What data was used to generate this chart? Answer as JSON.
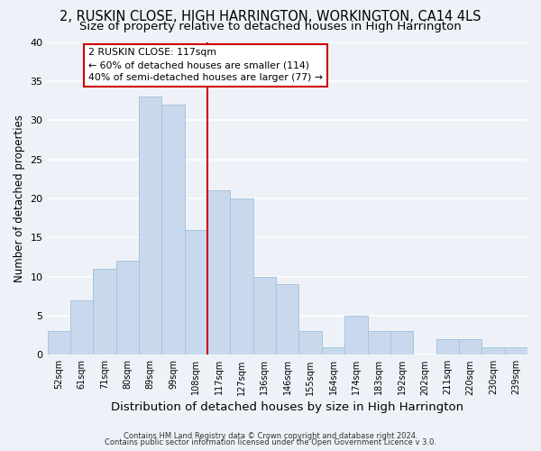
{
  "title1": "2, RUSKIN CLOSE, HIGH HARRINGTON, WORKINGTON, CA14 4LS",
  "title2": "Size of property relative to detached houses in High Harrington",
  "xlabel": "Distribution of detached houses by size in High Harrington",
  "ylabel": "Number of detached properties",
  "footer1": "Contains HM Land Registry data © Crown copyright and database right 2024.",
  "footer2": "Contains public sector information licensed under the Open Government Licence v 3.0.",
  "bin_labels": [
    "52sqm",
    "61sqm",
    "71sqm",
    "80sqm",
    "89sqm",
    "99sqm",
    "108sqm",
    "117sqm",
    "127sqm",
    "136sqm",
    "146sqm",
    "155sqm",
    "164sqm",
    "174sqm",
    "183sqm",
    "192sqm",
    "202sqm",
    "211sqm",
    "220sqm",
    "230sqm",
    "239sqm"
  ],
  "bar_values": [
    3,
    7,
    11,
    12,
    33,
    32,
    16,
    21,
    20,
    10,
    9,
    3,
    1,
    5,
    3,
    3,
    0,
    2,
    2,
    1,
    1
  ],
  "bar_color": "#c8d9ed",
  "bar_edge_color": "#a8c4dc",
  "vline_x_idx": 7,
  "vline_color": "#cc0000",
  "annotation_line1": "2 RUSKIN CLOSE: 117sqm",
  "annotation_line2": "← 60% of detached houses are smaller (114)",
  "annotation_line3": "40% of semi-detached houses are larger (77) →",
  "annotation_box_color": "#ffffff",
  "annotation_box_edge": "#cc0000",
  "ylim": [
    0,
    40
  ],
  "yticks": [
    0,
    5,
    10,
    15,
    20,
    25,
    30,
    35,
    40
  ],
  "background_color": "#eef2f8",
  "grid_color": "#ffffff",
  "title1_fontsize": 10.5,
  "title2_fontsize": 9.5,
  "xlabel_fontsize": 9.5,
  "ylabel_fontsize": 8.5,
  "footer_fontsize": 6.0
}
